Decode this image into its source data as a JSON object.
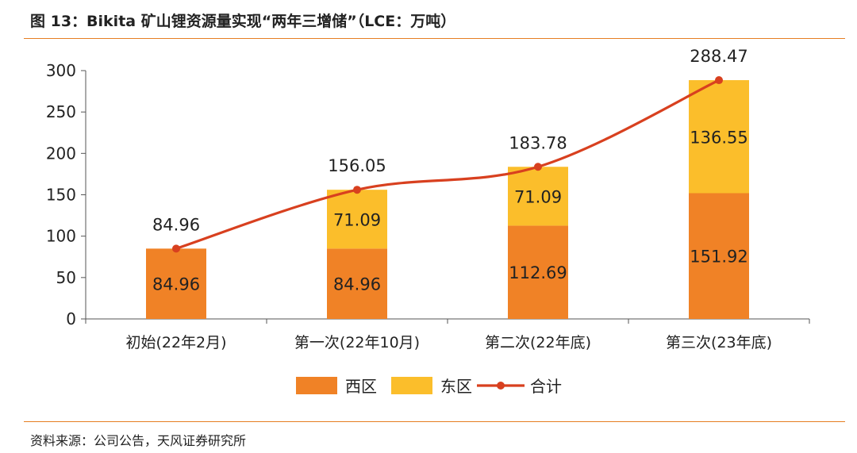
{
  "header": {
    "title": "图 13：Bikita 矿山锂资源量实现“两年三增储”（LCE：万吨）"
  },
  "footer": {
    "source": "资料来源：公司公告，天风证券研究所"
  },
  "chart_data": {
    "type": "bar",
    "stacked": true,
    "categories": [
      "初始(22年2月)",
      "第一次(22年10月)",
      "第二次(22年底)",
      "第三次(23年底)"
    ],
    "series": [
      {
        "name": "西区",
        "values": [
          84.96,
          84.96,
          112.69,
          151.92
        ],
        "color": "#F08226"
      },
      {
        "name": "东区",
        "values": [
          0,
          71.09,
          71.09,
          136.55
        ],
        "color": "#FBBE2B"
      }
    ],
    "total_line": {
      "name": "合计",
      "values": [
        84.96,
        156.05,
        183.78,
        288.47
      ],
      "color": "#D8401F"
    },
    "segment_labels": [
      [
        "84.96",
        "84.96",
        "112.69",
        "151.92"
      ],
      [
        "",
        "71.09",
        "71.09",
        "136.55"
      ]
    ],
    "total_labels": [
      "84.96",
      "156.05",
      "183.78",
      "288.47"
    ],
    "ylim": [
      0,
      300
    ],
    "yticks": [
      "0",
      "50",
      "100",
      "150",
      "200",
      "250",
      "300"
    ],
    "grid": false,
    "legend_position": "bottom"
  }
}
